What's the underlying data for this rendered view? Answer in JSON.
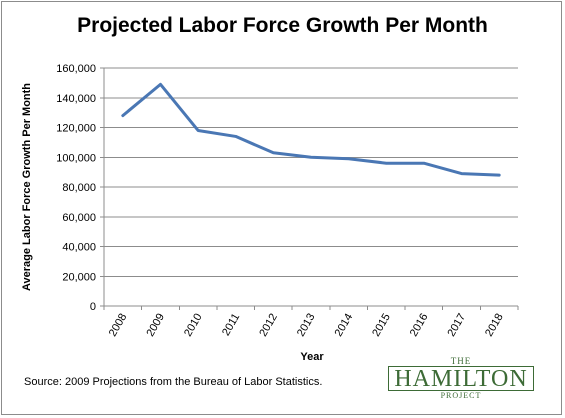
{
  "chart_data": {
    "type": "line",
    "title": "Projected Labor Force Growth Per Month",
    "xlabel": "Year",
    "ylabel": "Average Labor Force Growth Per Month",
    "categories": [
      "2008",
      "2009",
      "2010",
      "2011",
      "2012",
      "2013",
      "2014",
      "2015",
      "2016",
      "2017",
      "2018"
    ],
    "series": [
      {
        "name": "",
        "values": [
          128000,
          149000,
          118000,
          114000,
          103000,
          100000,
          99000,
          96000,
          96000,
          89000,
          88000
        ]
      }
    ],
    "ylim": [
      0,
      160000
    ],
    "yticks": [
      0,
      20000,
      40000,
      60000,
      80000,
      100000,
      120000,
      140000,
      160000
    ],
    "ytick_labels": [
      "0",
      "20,000",
      "40,000",
      "60,000",
      "80,000",
      "100,000",
      "120,000",
      "140,000",
      "160,000"
    ],
    "grid": true,
    "line_color": "#4a77b4",
    "legend": "none"
  },
  "source_note": "Source: 2009 Projections from the Bureau of Labor Statistics.",
  "logo": {
    "top": "THE",
    "main": "HAMILTON",
    "bottom": "PROJECT",
    "color": "#3d6b36"
  }
}
